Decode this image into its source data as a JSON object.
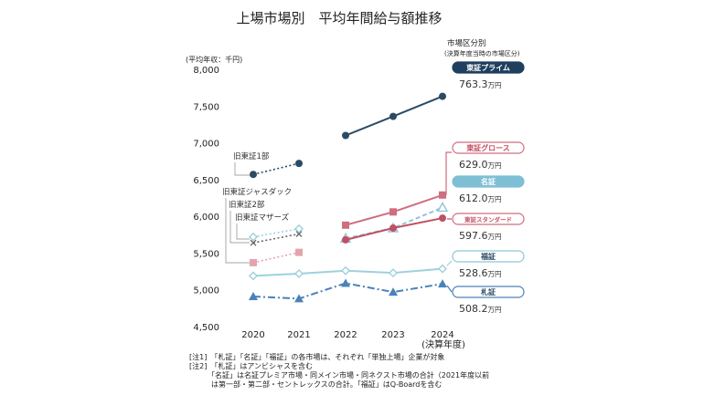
{
  "chart_data": {
    "type": "line",
    "title": "上場市場別　平均年間給与額推移",
    "ylabel": "(平均年収：千円)",
    "ylim": [
      4500,
      8000
    ],
    "yticks": [
      4500,
      5000,
      5500,
      6000,
      6500,
      7000,
      7500,
      8000
    ],
    "ytick_labels": [
      "4,500",
      "5,000",
      "5,500",
      "6,000",
      "6,500",
      "7,000",
      "7,500",
      "8,000"
    ],
    "categories": [
      "2020",
      "2021",
      "2022",
      "2023",
      "2024"
    ],
    "x_sublabel": "(決算年度)",
    "legend_title": "市場区分別",
    "legend_subtitle": "(決算年度当時の市場区分)",
    "grid": false,
    "unit_suffix": "万円",
    "series": [
      {
        "name": "東証プライム",
        "value_label": "763.3",
        "color": "#2b4a63",
        "style": "solid",
        "marker": "circle",
        "values": [
          null,
          null,
          7100,
          7360,
          7633
        ]
      },
      {
        "name": "東証グロース",
        "value_label": "629.0",
        "color": "#cf6e7f",
        "style": "solid",
        "marker": "square",
        "values": [
          null,
          null,
          5880,
          6060,
          6290
        ]
      },
      {
        "name": "名証",
        "value_label": "612.0",
        "color": "#8fc6d8",
        "style": "dashed",
        "marker": "triangle-open",
        "values": [
          null,
          null,
          5700,
          5840,
          6120
        ]
      },
      {
        "name": "東証スタンダード",
        "value_label": "597.6",
        "color": "#c24f63",
        "style": "solid",
        "marker": "circle",
        "values": [
          null,
          null,
          5680,
          5840,
          5976
        ]
      },
      {
        "name": "福証",
        "value_label": "528.6",
        "color": "#9ed0de",
        "style": "solid",
        "marker": "diamond-open",
        "values": [
          5190,
          5220,
          5260,
          5230,
          5286
        ]
      },
      {
        "name": "札証",
        "value_label": "508.2",
        "color": "#4b82b8",
        "style": "dashdot",
        "marker": "triangle",
        "values": [
          4910,
          4880,
          5090,
          4970,
          5082
        ]
      }
    ],
    "former_series": [
      {
        "name": "旧東証1部",
        "color": "#2b4a63",
        "marker": "circle",
        "values": [
          6570,
          6720
        ]
      },
      {
        "name": "旧東証ジャスダック",
        "color": "#e4a4ae",
        "marker": "square",
        "values": [
          5370,
          5510
        ]
      },
      {
        "name": "旧東証2部",
        "color": "#666666",
        "marker": "x",
        "values": [
          5640,
          5760
        ]
      },
      {
        "name": "旧東証マザーズ",
        "color": "#9ed0de",
        "marker": "diamond-open",
        "values": [
          5720,
          5830
        ]
      }
    ],
    "notes": [
      "[注1]　「札証」「名証」「福証」の各市場は、それぞれ「単独上場」企業が対象",
      "[注2]　「札証」はアンビシャスを含む",
      "　　　「名証」は名証プレミア市場・同メイン市場・同ネクスト市場の合計（2021年度以前",
      "　　　は第一部・第二部・セントレックスの合計。「福証」はQ-Boardを含む"
    ]
  },
  "colors": {
    "prime": "#2b4a63",
    "growth": "#cf6e7f",
    "meisho": "#8fc6d8",
    "standard": "#c24f63",
    "fukusho": "#9ed0de",
    "sassho": "#4b82b8"
  }
}
